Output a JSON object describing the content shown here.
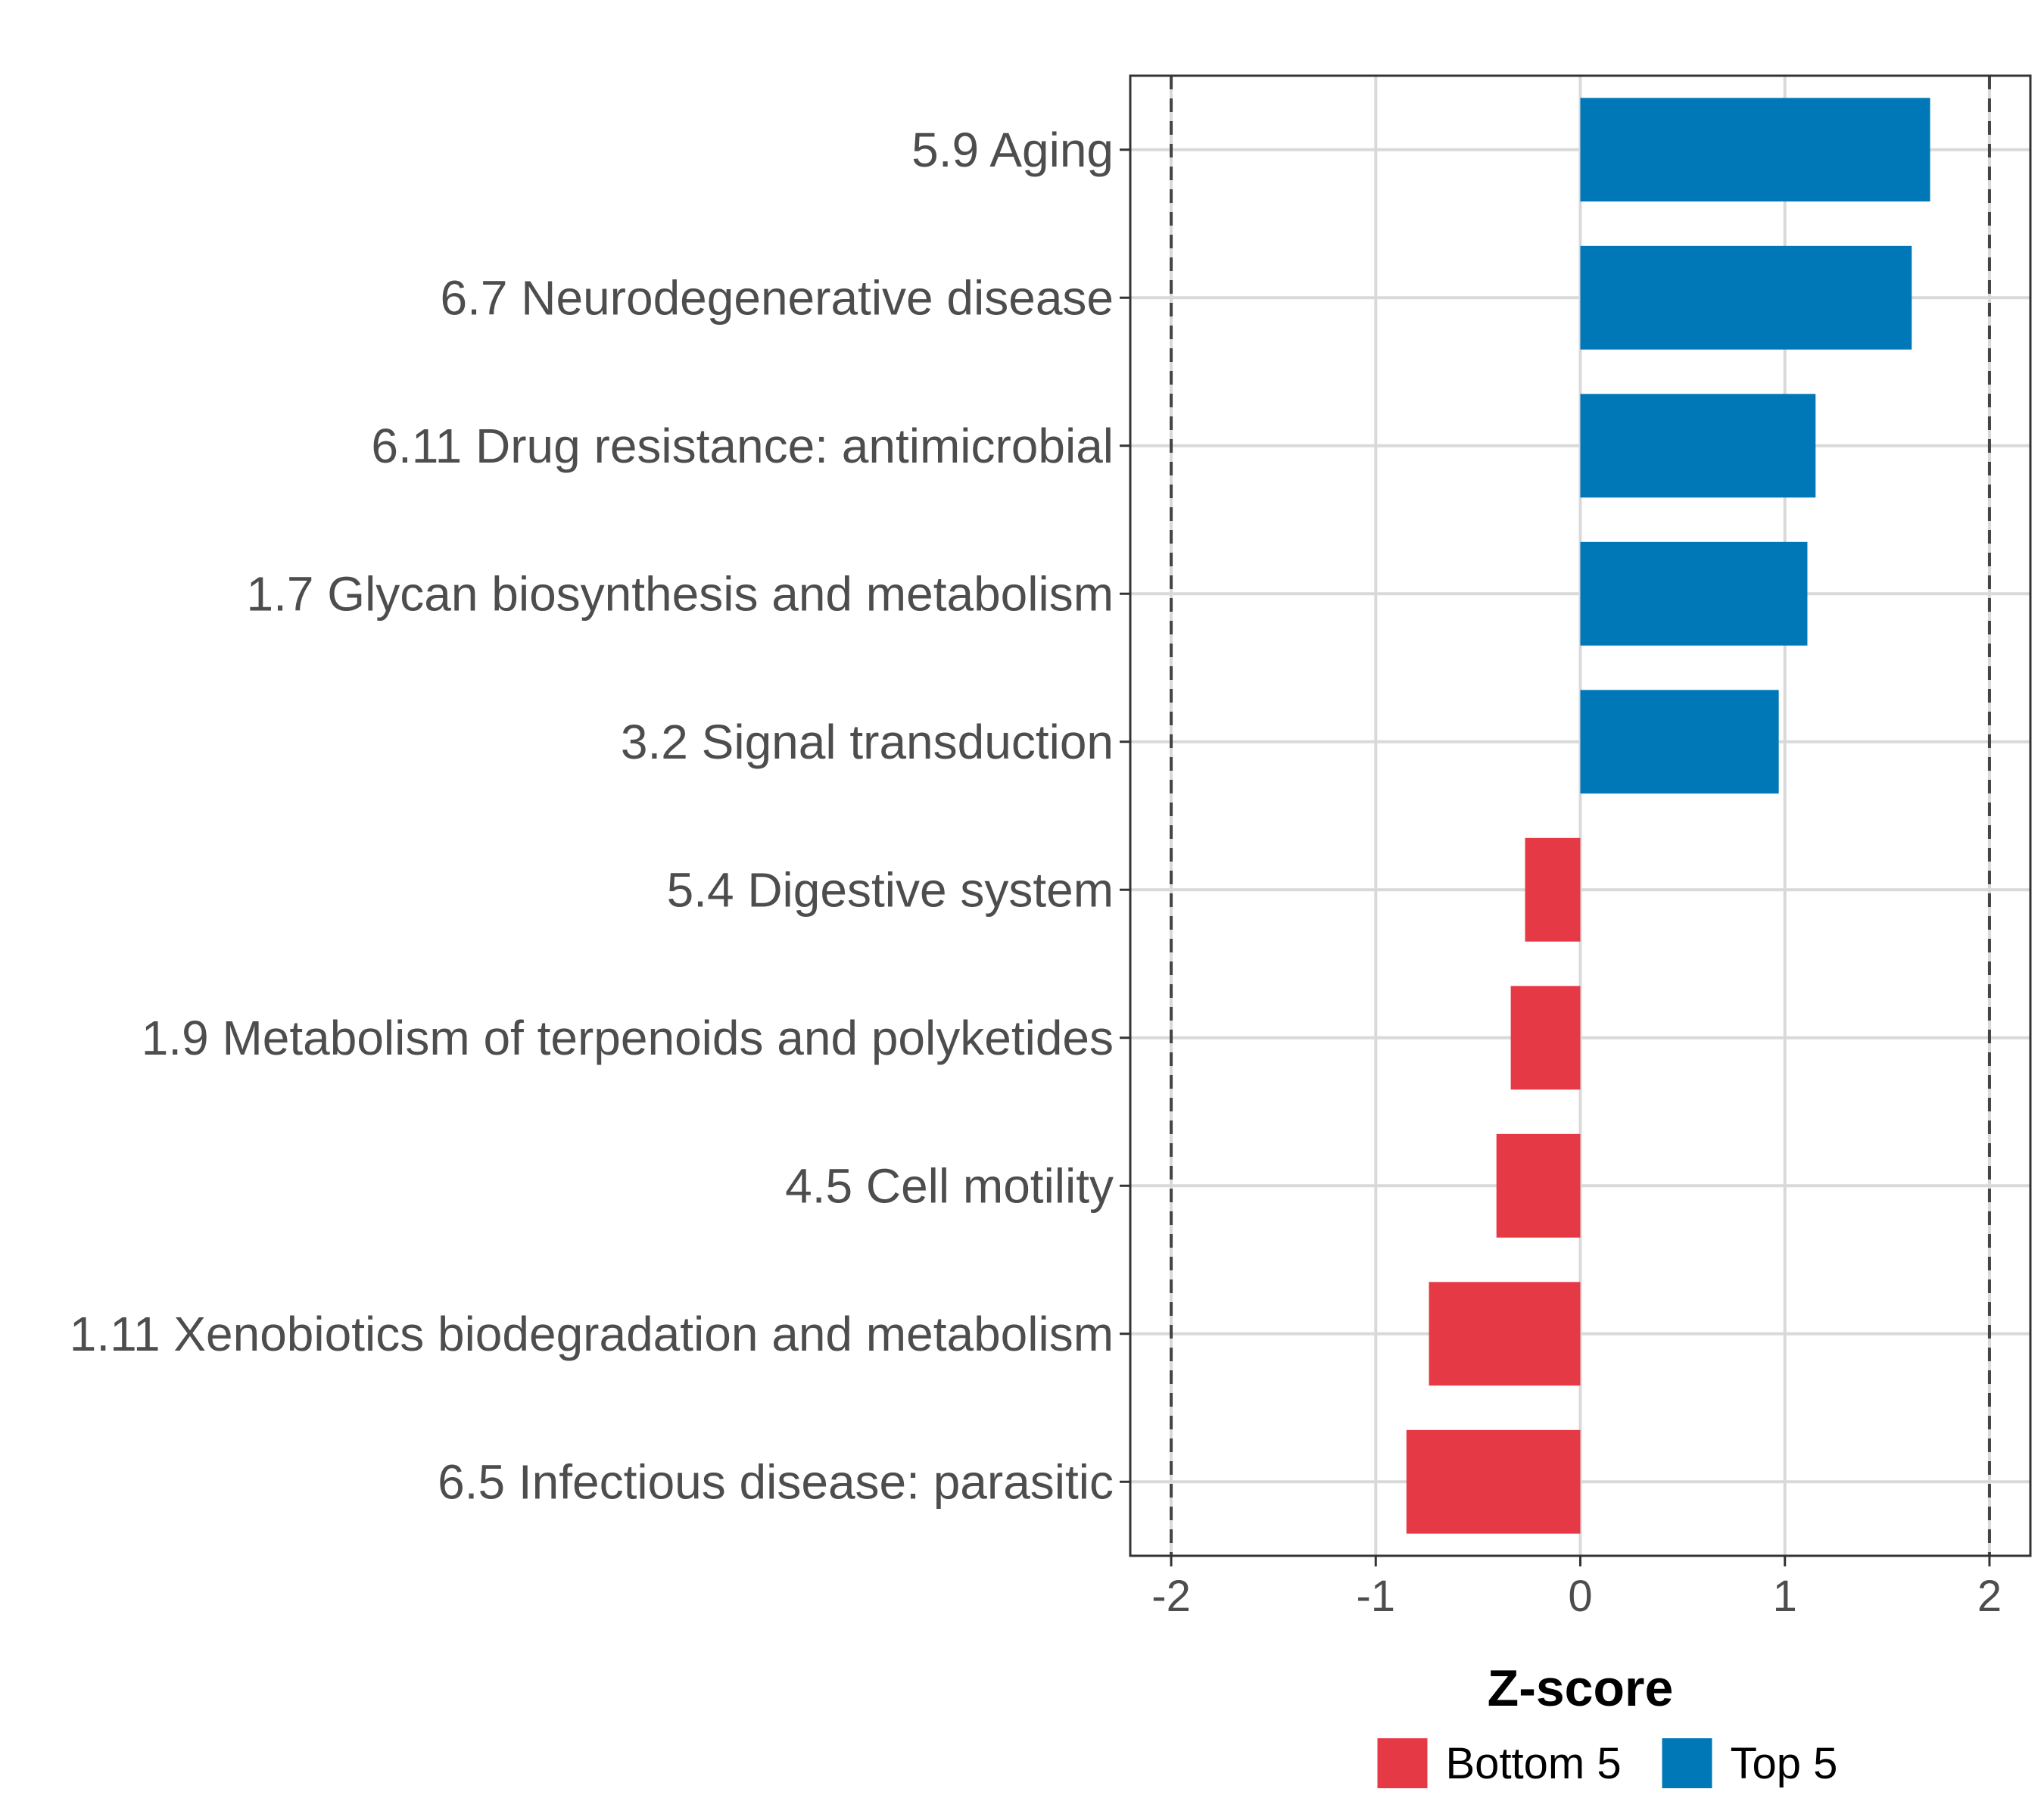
{
  "chart_data": {
    "type": "bar",
    "orientation": "horizontal",
    "title": "",
    "xlabel": "Z-score",
    "ylabel": "",
    "xlim": [
      -2.2,
      2.2
    ],
    "xticks": [
      -2,
      -1,
      0,
      1,
      2
    ],
    "xtick_labels": [
      "-2",
      "-1",
      "0",
      "1",
      "2"
    ],
    "reference_lines": [
      -2,
      2
    ],
    "grid": true,
    "categories": [
      "5.9 Aging",
      "6.7 Neurodegenerative disease",
      "6.11 Drug resistance: antimicrobial",
      "1.7 Glycan biosynthesis and metabolism",
      "3.2 Signal transduction",
      "5.4 Digestive system",
      "1.9 Metabolism of terpenoids and polyketides",
      "4.5 Cell motility",
      "1.11 Xenobiotics biodegradation and metabolism",
      "6.5 Infectious disease: parasitic"
    ],
    "values": [
      1.71,
      1.62,
      1.15,
      1.11,
      0.97,
      -0.27,
      -0.34,
      -0.41,
      -0.74,
      -0.85
    ],
    "groups": [
      "Top 5",
      "Top 5",
      "Top 5",
      "Top 5",
      "Top 5",
      "Bottom 5",
      "Bottom 5",
      "Bottom 5",
      "Bottom 5",
      "Bottom 5"
    ],
    "legend": {
      "placement": "bottom",
      "entries": [
        {
          "label": "Bottom 5",
          "color": "#e63946"
        },
        {
          "label": "Top 5",
          "color": "#0077b6"
        }
      ]
    }
  }
}
